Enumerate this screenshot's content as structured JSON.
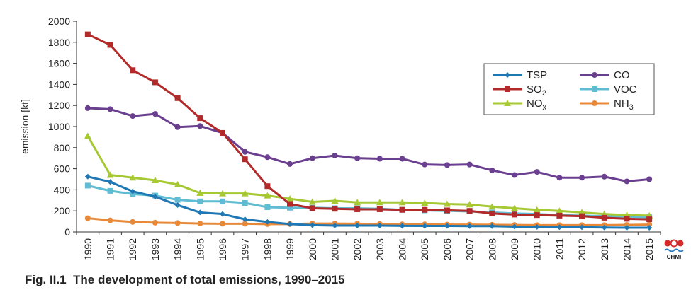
{
  "caption": {
    "label": "Fig. II.1",
    "text": "The development of total emissions, 1990–2015"
  },
  "logo": {
    "text": "CHMI"
  },
  "chart_data": {
    "type": "line",
    "title": "",
    "xlabel": "",
    "ylabel": "emission [kt]",
    "ylim": [
      0,
      2000
    ],
    "yticks": [
      0,
      200,
      400,
      600,
      800,
      1000,
      1200,
      1400,
      1600,
      1800,
      2000
    ],
    "grid": false,
    "legend_position": "top-right",
    "x": [
      "1990",
      "1991",
      "1992",
      "1993",
      "1994",
      "1995",
      "1996",
      "1997",
      "1998",
      "1999",
      "2000",
      "2001",
      "2002",
      "2003",
      "2004",
      "2005",
      "2006",
      "2007",
      "2008",
      "2009",
      "2010",
      "2011",
      "2012",
      "2013",
      "2014",
      "2015"
    ],
    "series": [
      {
        "name": "TSP",
        "sub": "",
        "color": "#1f78b4",
        "marker": "diamond",
        "values": [
          525,
          475,
          385,
          335,
          255,
          185,
          170,
          120,
          95,
          75,
          65,
          60,
          60,
          60,
          58,
          57,
          57,
          55,
          55,
          50,
          48,
          45,
          45,
          42,
          40,
          40
        ]
      },
      {
        "name": "SO",
        "sub": "2",
        "color": "#b22a2a",
        "marker": "square",
        "values": [
          1875,
          1775,
          1535,
          1420,
          1270,
          1080,
          940,
          690,
          435,
          265,
          225,
          220,
          215,
          215,
          210,
          210,
          205,
          200,
          175,
          165,
          160,
          155,
          150,
          135,
          125,
          120
        ]
      },
      {
        "name": "NO",
        "sub": "x",
        "color": "#a6c832",
        "marker": "triangle",
        "values": [
          910,
          540,
          515,
          490,
          450,
          370,
          365,
          365,
          345,
          315,
          285,
          295,
          280,
          280,
          280,
          275,
          265,
          260,
          240,
          225,
          210,
          200,
          185,
          170,
          160,
          155
        ]
      },
      {
        "name": "CO",
        "sub": "",
        "color": "#6a3f8f",
        "marker": "circle",
        "values": [
          1175,
          1165,
          1100,
          1120,
          995,
          1005,
          940,
          760,
          710,
          645,
          700,
          725,
          700,
          695,
          695,
          640,
          635,
          640,
          585,
          540,
          570,
          515,
          515,
          525,
          480,
          500
        ]
      },
      {
        "name": "VOC",
        "sub": "",
        "color": "#5fbcd3",
        "marker": "square",
        "values": [
          440,
          390,
          360,
          345,
          305,
          290,
          290,
          275,
          235,
          230,
          230,
          225,
          225,
          220,
          210,
          205,
          200,
          195,
          185,
          175,
          170,
          160,
          155,
          150,
          145,
          140
        ]
      },
      {
        "name": "NH",
        "sub": "3",
        "color": "#e8893a",
        "marker": "circle",
        "values": [
          130,
          110,
          95,
          88,
          85,
          80,
          78,
          78,
          75,
          75,
          80,
          80,
          78,
          75,
          72,
          72,
          70,
          70,
          68,
          66,
          65,
          65,
          65,
          65,
          67,
          70
        ]
      }
    ]
  }
}
